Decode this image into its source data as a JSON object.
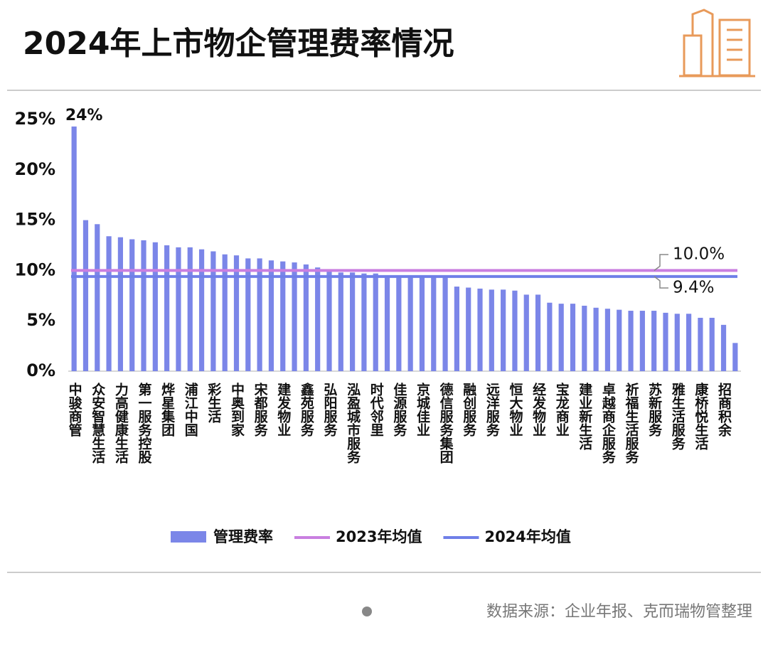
{
  "chart_data": {
    "type": "bar",
    "title": "2024年上市物企管理费率情况",
    "source": "数据来源：企业年报、克而瑞物管整理",
    "categories": [
      "中骏商管",
      null,
      "众安智慧生活",
      null,
      "力高健康生活",
      null,
      "第一服务控股",
      null,
      "烨星集团",
      null,
      "浦江中国",
      null,
      "彩生活",
      null,
      "中奥到家",
      null,
      "宋都服务",
      null,
      "建发物业",
      null,
      "鑫苑服务",
      null,
      "弘阳服务",
      null,
      "泓盈城市服务",
      null,
      "时代邻里",
      null,
      "佳源服务",
      null,
      "京城佳业",
      null,
      "德信服务集团",
      null,
      "融创服务",
      null,
      "远洋服务",
      null,
      "恒大物业",
      null,
      "经发物业",
      null,
      "宝龙商业",
      null,
      "建业新生活",
      null,
      "卓越商企服务",
      null,
      "祈福生活服务",
      null,
      "苏新服务",
      null,
      "雅生活服务",
      null,
      "康桥悦生活",
      null,
      "招商积余",
      null
    ],
    "series": [
      {
        "name": "管理费率",
        "color": "#7b86e8",
        "values": [
          24.3,
          15.0,
          14.6,
          13.4,
          13.3,
          13.1,
          13.0,
          12.8,
          12.5,
          12.3,
          12.3,
          12.1,
          11.9,
          11.6,
          11.5,
          11.2,
          11.2,
          11.0,
          10.9,
          10.8,
          10.6,
          10.3,
          10.0,
          9.8,
          9.8,
          9.7,
          9.7,
          9.5,
          9.4,
          9.3,
          9.3,
          9.3,
          9.3,
          8.4,
          8.3,
          8.2,
          8.1,
          8.1,
          8.0,
          7.6,
          7.6,
          6.8,
          6.7,
          6.7,
          6.5,
          6.3,
          6.2,
          6.1,
          6.0,
          6.0,
          6.0,
          5.8,
          5.7,
          5.7,
          5.3,
          5.3,
          4.6,
          2.8
        ],
        "value_labels": [
          "24%",
          null,
          null,
          null,
          null,
          null,
          null,
          null,
          null,
          null,
          null,
          null,
          null,
          null,
          null,
          null,
          null,
          null,
          null,
          null,
          null,
          null,
          null,
          null,
          null,
          null,
          null,
          null,
          null,
          null,
          null,
          null,
          null,
          null,
          null,
          null,
          null,
          null,
          null,
          null,
          null,
          null,
          null,
          null,
          null,
          null,
          null,
          null,
          null,
          null,
          null,
          null,
          null,
          null,
          null,
          null,
          null,
          null
        ]
      }
    ],
    "reference_lines": [
      {
        "name": "2023年均值",
        "color": "#c97fe0",
        "value": 10.0,
        "value_label": "10.0%"
      },
      {
        "name": "2024年均值",
        "color": "#6f7fe8",
        "value": 9.4,
        "value_label": "9.4%"
      }
    ],
    "ylim": [
      0,
      25
    ],
    "yticks": [
      {
        "value": 0,
        "label": "0%"
      },
      {
        "value": 5,
        "label": "5%"
      },
      {
        "value": 10,
        "label": "10%"
      },
      {
        "value": 15,
        "label": "15%"
      },
      {
        "value": 20,
        "label": "20%"
      },
      {
        "value": 25,
        "label": "25%"
      }
    ]
  }
}
